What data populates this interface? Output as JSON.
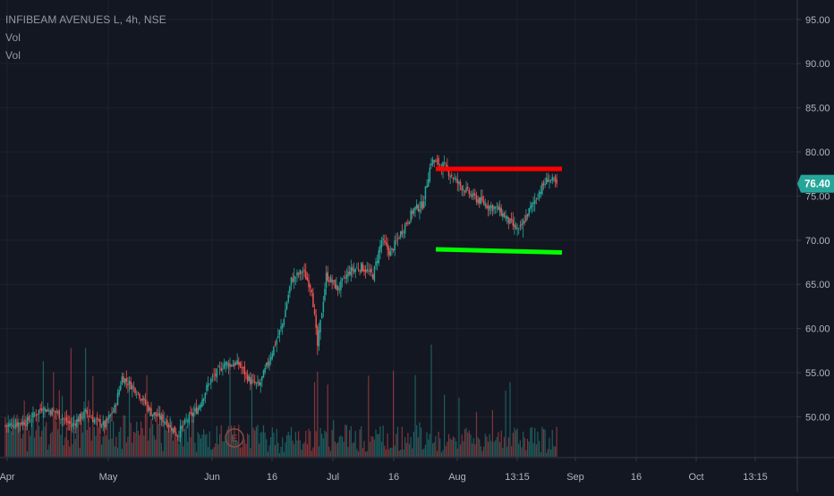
{
  "header": {
    "symbol_line": "INFIBEAM AVENUES L, 4h, NSE",
    "indicators": [
      "Vol",
      "Vol"
    ]
  },
  "last_price_label": "76.40",
  "chart_data": {
    "type": "candlestick",
    "title": "INFIBEAM AVENUES L, 4h, NSE",
    "xlabel": "",
    "ylabel": "",
    "ylim": [
      46,
      97
    ],
    "y_ticks": [
      50,
      55,
      60,
      65,
      70,
      75,
      80,
      85,
      90,
      95
    ],
    "y_tick_labels": [
      "50.00",
      "55.00",
      "60.00",
      "65.00",
      "70.00",
      "75.00",
      "80.00",
      "85.00",
      "90.00",
      "95.00"
    ],
    "x_tick_labels": [
      "Apr",
      "May",
      "Jun",
      "16",
      "Jul",
      "16",
      "Aug",
      "13:15",
      "Sep",
      "16",
      "Oct",
      "13:15"
    ],
    "last_price": 76.4,
    "earnings_marker": "E",
    "annotations": [
      {
        "type": "resistance",
        "from": 79.0,
        "to": 79.0,
        "color": "#ff0000"
      },
      {
        "type": "support",
        "from": 69.8,
        "to": 69.5,
        "color": "#00ff00"
      }
    ],
    "close_anchors": [
      [
        0,
        49.0
      ],
      [
        15,
        49.5
      ],
      [
        25,
        51.0
      ],
      [
        35,
        50.5
      ],
      [
        45,
        49.0
      ],
      [
        55,
        50.5
      ],
      [
        62,
        49.5
      ],
      [
        68,
        49.0
      ],
      [
        75,
        51.0
      ],
      [
        80,
        54.5
      ],
      [
        90,
        53.0
      ],
      [
        100,
        50.5
      ],
      [
        110,
        49.5
      ],
      [
        118,
        48.0
      ],
      [
        124,
        49.5
      ],
      [
        132,
        51.0
      ],
      [
        140,
        54.0
      ],
      [
        150,
        56.0
      ],
      [
        160,
        56.0
      ],
      [
        168,
        54.0
      ],
      [
        174,
        53.5
      ],
      [
        182,
        57.0
      ],
      [
        190,
        60.5
      ],
      [
        196,
        65.5
      ],
      [
        204,
        66.5
      ],
      [
        210,
        64.5
      ],
      [
        214,
        58.0
      ],
      [
        220,
        66.0
      ],
      [
        228,
        64.5
      ],
      [
        236,
        66.5
      ],
      [
        244,
        67.0
      ],
      [
        252,
        66.0
      ],
      [
        258,
        70.0
      ],
      [
        264,
        68.5
      ],
      [
        270,
        70.5
      ],
      [
        280,
        73.5
      ],
      [
        286,
        74.0
      ],
      [
        292,
        79.0
      ],
      [
        300,
        78.5
      ],
      [
        310,
        76.5
      ],
      [
        320,
        75.0
      ],
      [
        330,
        74.0
      ],
      [
        338,
        73.5
      ],
      [
        346,
        72.0
      ],
      [
        352,
        71.0
      ],
      [
        358,
        73.0
      ],
      [
        366,
        75.5
      ],
      [
        372,
        77.0
      ],
      [
        378,
        76.4
      ]
    ],
    "volume_scale_max": 100,
    "colors": {
      "up": "#26a69a",
      "down": "#ef5350",
      "background": "#131722",
      "grid": "#1e222d",
      "text": "#b2b5be",
      "price_label_bg": "#26a69a"
    }
  }
}
